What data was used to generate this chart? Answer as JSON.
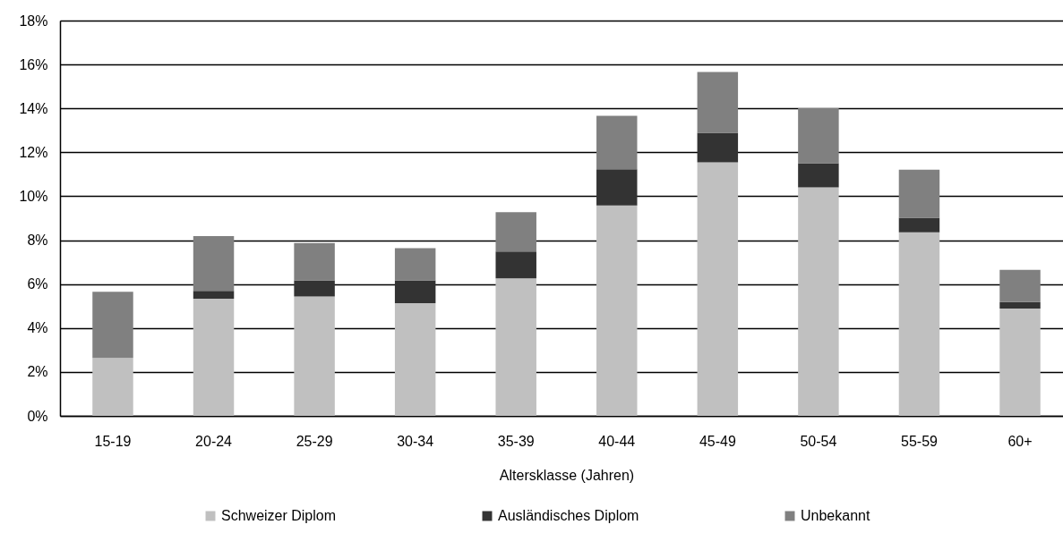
{
  "chart_data": {
    "type": "bar",
    "stacked": true,
    "categories": [
      "15-19",
      "20-24",
      "25-29",
      "30-34",
      "35-39",
      "40-44",
      "45-49",
      "50-54",
      "55-59",
      "60+"
    ],
    "series": [
      {
        "name": "Schweizer Diplom",
        "color": "#c0c0c0",
        "values": [
          2.64,
          5.33,
          5.44,
          5.13,
          6.26,
          9.58,
          11.55,
          10.4,
          8.36,
          4.89
        ]
      },
      {
        "name": "Ausländisches Diplom",
        "color": "#333333",
        "values": [
          null,
          0.36,
          0.73,
          1.04,
          1.22,
          1.65,
          1.34,
          1.1,
          0.66,
          0.29
        ]
      },
      {
        "name": "Unbekannt",
        "color": "#808080",
        "values": [
          3.01,
          2.5,
          1.7,
          1.47,
          1.79,
          2.43,
          2.77,
          2.51,
          2.19,
          1.47
        ]
      }
    ],
    "xlabel": "Altersklasse (Jahren)",
    "ylim": [
      0,
      18
    ],
    "yticks": [
      {
        "value": 0,
        "label": "0%"
      },
      {
        "value": 2,
        "label": "2%"
      },
      {
        "value": 4,
        "label": "4%"
      },
      {
        "value": 6,
        "label": "6%"
      },
      {
        "value": 8,
        "label": "8%"
      },
      {
        "value": 10,
        "label": "10%"
      },
      {
        "value": 12,
        "label": "12%"
      },
      {
        "value": 14,
        "label": "14%"
      },
      {
        "value": 16,
        "label": "16%"
      },
      {
        "value": 18,
        "label": "18%"
      }
    ],
    "grid": "y",
    "legend": "bottom"
  }
}
